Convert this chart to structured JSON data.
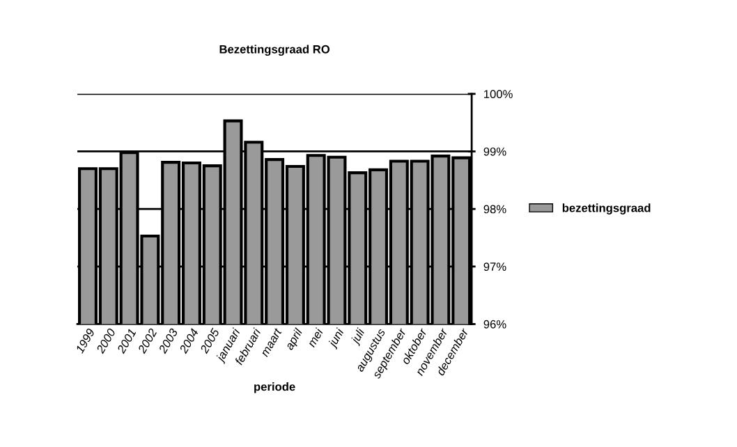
{
  "chart_data": {
    "type": "bar",
    "title": "Bezettingsgraad RO",
    "xlabel": "periode",
    "categories": [
      "1999",
      "2000",
      "2001",
      "2002",
      "2003",
      "2004",
      "2005",
      "januari",
      "februari",
      "maart",
      "april",
      "mei",
      "juni",
      "juli",
      "augustus",
      "september",
      "oktober",
      "november",
      "december"
    ],
    "series": [
      {
        "name": "bezettingsgraad",
        "color": "#9a9a9a",
        "values": [
          98.7,
          98.7,
          98.98,
          97.53,
          98.81,
          98.8,
          98.75,
          99.53,
          99.16,
          98.86,
          98.74,
          98.93,
          98.9,
          98.63,
          98.68,
          98.83,
          98.83,
          98.92,
          98.89
        ]
      }
    ],
    "ylim": [
      96,
      100
    ],
    "yticks": [
      {
        "value": 96,
        "label": "96%"
      },
      {
        "value": 97,
        "label": "97%"
      },
      {
        "value": 98,
        "label": "98%"
      },
      {
        "value": 99,
        "label": "99%"
      },
      {
        "value": 100,
        "label": "100%"
      }
    ],
    "grid": "y",
    "legend": "right"
  }
}
